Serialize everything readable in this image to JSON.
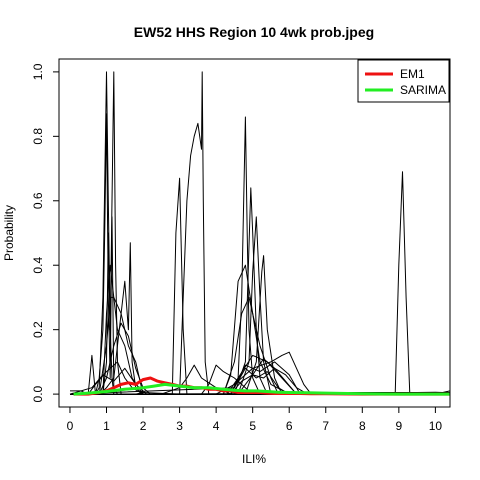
{
  "chart_data": {
    "type": "line",
    "title": "EW52 HHS Region 10 4wk prob.jpeg",
    "xlabel": "ILI%",
    "ylabel": "Probability",
    "xlim": [
      -0.3,
      10.4
    ],
    "ylim": [
      -0.04,
      1.04
    ],
    "x_ticks": [
      "0",
      "1",
      "2",
      "3",
      "4",
      "5",
      "6",
      "7",
      "8",
      "9",
      "10"
    ],
    "y_ticks": [
      "0.0",
      "0.2",
      "0.4",
      "0.6",
      "0.8",
      "1.0"
    ],
    "grid": false,
    "legend": {
      "position": "top-right",
      "entries": [
        {
          "name": "EM1",
          "color": "#ee1111"
        },
        {
          "name": "SARIMA",
          "color": "#22ee22"
        }
      ]
    },
    "series": [
      {
        "name": "EM1",
        "color": "#ee1111",
        "x": [
          0.1,
          0.5,
          0.8,
          1.0,
          1.2,
          1.4,
          1.6,
          1.8,
          2.0,
          2.2,
          2.4,
          2.6,
          2.8,
          3.0,
          3.2,
          3.4,
          3.6,
          3.8,
          4.0,
          4.2,
          4.4,
          4.6,
          4.8,
          5.0,
          5.2,
          5.4,
          5.6,
          5.8,
          6.0,
          6.3,
          6.6,
          7.0,
          8.0,
          9.0,
          10.4
        ],
        "y": [
          0.0,
          0.0,
          0.005,
          0.01,
          0.02,
          0.03,
          0.035,
          0.03,
          0.045,
          0.05,
          0.04,
          0.035,
          0.03,
          0.025,
          0.025,
          0.02,
          0.02,
          0.015,
          0.015,
          0.01,
          0.01,
          0.005,
          0.005,
          0.005,
          0.005,
          0.003,
          0.002,
          0.002,
          0.002,
          0.002,
          0.001,
          0.001,
          0.0,
          0.0,
          0.0
        ]
      },
      {
        "name": "SARIMA",
        "color": "#22ee22",
        "x": [
          0.1,
          0.5,
          1.0,
          1.5,
          2.0,
          2.3,
          2.6,
          3.0,
          3.4,
          3.8,
          4.2,
          4.5,
          4.8,
          5.1,
          5.4,
          5.7,
          6.0,
          6.5,
          7.0,
          8.0,
          9.0,
          10.4
        ],
        "y": [
          0.0,
          0.003,
          0.008,
          0.015,
          0.02,
          0.025,
          0.03,
          0.025,
          0.02,
          0.02,
          0.015,
          0.012,
          0.01,
          0.01,
          0.008,
          0.006,
          0.005,
          0.004,
          0.003,
          0.001,
          0.0,
          0.0
        ]
      },
      {
        "x": [
          0.0,
          0.3,
          0.5,
          0.6,
          0.7,
          0.8,
          0.9,
          0.95,
          1.0,
          1.05,
          1.1,
          1.15,
          1.2,
          1.3,
          1.4,
          1.6,
          2.0,
          3.0,
          4.0,
          5.0,
          6.0,
          7.0,
          8.0,
          9.0,
          10.0,
          10.4
        ],
        "y": [
          0.01,
          0.01,
          0.0,
          0.12,
          0.0,
          0.05,
          0.2,
          0.5,
          0.87,
          0.3,
          0.05,
          0.55,
          0.02,
          0.0,
          0.0,
          0.0,
          0.0,
          0.0,
          0.0,
          0.0,
          0.0,
          0.005,
          0.005,
          0.005,
          0.005,
          0.005
        ]
      },
      {
        "x": [
          0.0,
          0.7,
          0.8,
          0.9,
          1.0,
          1.05,
          1.1,
          1.15,
          1.2,
          1.3,
          1.5,
          1.7,
          1.8,
          2.0,
          3.0,
          5.0,
          7.0,
          8.0,
          9.0,
          10.4
        ],
        "y": [
          0.0,
          0.0,
          0.02,
          0.3,
          1.0,
          0.6,
          0.2,
          0.05,
          0.0,
          0.0,
          0.0,
          0.0,
          0.0,
          0.005,
          0.0,
          0.0,
          0.005,
          0.005,
          0.005,
          0.005
        ]
      },
      {
        "x": [
          0.0,
          0.9,
          1.0,
          1.05,
          1.1,
          1.15,
          1.2,
          1.25,
          1.3,
          1.4,
          2.0,
          4.0,
          6.0,
          8.0,
          10.4
        ],
        "y": [
          0.0,
          0.0,
          0.1,
          0.5,
          0.2,
          0.6,
          1.0,
          0.4,
          0.1,
          0.0,
          0.0,
          0.0,
          0.0,
          0.0,
          0.0
        ]
      },
      {
        "x": [
          0.0,
          0.8,
          1.0,
          1.2,
          1.4,
          1.5,
          1.6,
          1.65,
          1.7,
          1.8,
          2.0,
          3.0,
          5.0,
          8.0,
          10.4
        ],
        "y": [
          0.0,
          0.0,
          0.02,
          0.05,
          0.25,
          0.35,
          0.2,
          0.47,
          0.1,
          0.02,
          0.0,
          0.0,
          0.0,
          0.0,
          0.0
        ]
      },
      {
        "x": [
          0.0,
          0.8,
          1.0,
          1.1,
          1.2,
          1.4,
          1.6,
          1.8,
          2.0,
          3.0,
          6.0,
          10.4
        ],
        "y": [
          0.0,
          0.0,
          0.15,
          0.3,
          0.3,
          0.25,
          0.15,
          0.1,
          0.0,
          0.0,
          0.0,
          0.0
        ]
      },
      {
        "x": [
          0.0,
          0.9,
          1.0,
          1.1,
          1.2,
          1.3,
          1.5,
          1.7,
          2.0,
          4.0,
          7.0,
          10.4
        ],
        "y": [
          0.0,
          0.0,
          0.25,
          0.4,
          0.3,
          0.2,
          0.15,
          0.05,
          0.0,
          0.0,
          0.0,
          0.0
        ]
      },
      {
        "x": [
          0.0,
          0.8,
          1.0,
          1.2,
          1.4,
          1.6,
          1.8,
          2.0,
          2.2,
          4.0,
          8.0,
          10.4
        ],
        "y": [
          0.0,
          0.0,
          0.05,
          0.15,
          0.22,
          0.18,
          0.08,
          0.02,
          0.0,
          0.0,
          0.0,
          0.0
        ]
      },
      {
        "x": [
          0.0,
          0.5,
          0.7,
          1.0,
          1.3,
          1.5,
          1.7,
          2.0,
          3.0,
          6.0,
          10.4
        ],
        "y": [
          0.0,
          0.0,
          0.03,
          0.07,
          0.1,
          0.05,
          0.02,
          0.0,
          0.0,
          0.0,
          0.0
        ]
      },
      {
        "x": [
          0.0,
          0.6,
          0.9,
          1.2,
          1.5,
          1.8,
          2.1,
          3.0,
          6.0,
          10.4
        ],
        "y": [
          0.0,
          0.02,
          0.06,
          0.04,
          0.08,
          0.03,
          0.0,
          0.0,
          0.0,
          0.0
        ]
      },
      {
        "x": [
          0.0,
          2.5,
          2.8,
          2.9,
          3.0,
          3.1,
          3.2,
          3.4,
          4.0,
          6.0,
          10.4
        ],
        "y": [
          0.0,
          0.0,
          0.0,
          0.5,
          0.67,
          0.2,
          0.0,
          0.0,
          0.0,
          0.0,
          0.0
        ]
      },
      {
        "x": [
          0.0,
          2.8,
          3.0,
          3.1,
          3.2,
          3.3,
          3.4,
          3.5,
          3.6,
          3.62,
          3.65,
          3.7,
          3.8,
          4.0,
          6.0,
          10.4
        ],
        "y": [
          0.0,
          0.0,
          0.0,
          0.3,
          0.6,
          0.74,
          0.8,
          0.84,
          0.76,
          1.0,
          0.6,
          0.1,
          0.0,
          0.0,
          0.0,
          0.0
        ]
      },
      {
        "x": [
          0.0,
          2.5,
          3.0,
          3.2,
          3.4,
          3.6,
          4.0,
          4.4,
          5.0,
          10.4
        ],
        "y": [
          0.0,
          0.0,
          0.02,
          0.05,
          0.09,
          0.05,
          0.02,
          0.0,
          0.0,
          0.0
        ]
      },
      {
        "x": [
          0.0,
          3.6,
          3.8,
          4.0,
          4.2,
          4.5,
          4.8,
          5.0,
          10.4
        ],
        "y": [
          0.0,
          0.0,
          0.03,
          0.09,
          0.07,
          0.05,
          0.02,
          0.0,
          0.0
        ]
      },
      {
        "x": [
          0.0,
          4.4,
          4.6,
          4.7,
          4.8,
          4.85,
          4.9,
          5.0,
          5.2,
          5.4,
          6.0,
          10.4
        ],
        "y": [
          0.0,
          0.0,
          0.05,
          0.3,
          0.86,
          0.5,
          0.2,
          0.05,
          0.0,
          0.0,
          0.0,
          0.0
        ]
      },
      {
        "x": [
          0.0,
          4.5,
          4.8,
          4.95,
          5.0,
          5.1,
          5.2,
          5.4,
          6.0,
          10.4
        ],
        "y": [
          0.0,
          0.0,
          0.1,
          0.64,
          0.5,
          0.2,
          0.05,
          0.0,
          0.0,
          0.0
        ]
      },
      {
        "x": [
          0.0,
          4.6,
          4.9,
          5.0,
          5.1,
          5.2,
          5.3,
          5.5,
          6.0,
          10.4
        ],
        "y": [
          0.0,
          0.0,
          0.1,
          0.38,
          0.55,
          0.3,
          0.1,
          0.0,
          0.0,
          0.0
        ]
      },
      {
        "x": [
          0.0,
          4.8,
          5.1,
          5.25,
          5.3,
          5.4,
          5.6,
          5.8,
          6.2,
          10.4
        ],
        "y": [
          0.0,
          0.0,
          0.1,
          0.38,
          0.43,
          0.2,
          0.05,
          0.0,
          0.0,
          0.0
        ]
      },
      {
        "x": [
          0.0,
          4.2,
          4.4,
          4.6,
          4.8,
          5.0,
          5.2,
          5.5,
          6.0,
          10.4
        ],
        "y": [
          0.0,
          0.0,
          0.06,
          0.35,
          0.4,
          0.25,
          0.1,
          0.03,
          0.0,
          0.0
        ]
      },
      {
        "x": [
          0.0,
          4.2,
          4.5,
          4.7,
          4.9,
          5.2,
          5.5,
          5.7,
          6.0,
          10.4
        ],
        "y": [
          0.0,
          0.0,
          0.1,
          0.25,
          0.3,
          0.15,
          0.05,
          0.0,
          0.0,
          0.0
        ]
      },
      {
        "x": [
          0.0,
          4.0,
          4.5,
          5.0,
          5.5,
          5.8,
          6.0,
          6.2,
          6.4,
          6.6,
          10.4
        ],
        "y": [
          0.0,
          0.0,
          0.03,
          0.08,
          0.1,
          0.12,
          0.13,
          0.08,
          0.03,
          0.0,
          0.0
        ]
      },
      {
        "x": [
          0.0,
          4.3,
          4.6,
          5.0,
          5.4,
          5.8,
          6.2,
          10.4
        ],
        "y": [
          0.0,
          0.0,
          0.05,
          0.12,
          0.1,
          0.05,
          0.0,
          0.0
        ]
      },
      {
        "x": [
          0.0,
          4.4,
          4.8,
          5.2,
          5.6,
          6.0,
          6.3,
          10.4
        ],
        "y": [
          0.0,
          0.0,
          0.09,
          0.07,
          0.1,
          0.06,
          0.0,
          0.0
        ]
      },
      {
        "x": [
          0.0,
          4.5,
          4.8,
          5.1,
          5.4,
          5.7,
          6.0,
          10.4
        ],
        "y": [
          0.0,
          0.02,
          0.08,
          0.05,
          0.07,
          0.02,
          0.0,
          0.0
        ]
      },
      {
        "x": [
          0.0,
          4.6,
          5.0,
          5.3,
          5.6,
          5.9,
          6.2,
          10.4
        ],
        "y": [
          0.0,
          0.0,
          0.06,
          0.11,
          0.08,
          0.04,
          0.0,
          0.0
        ]
      },
      {
        "x": [
          0.0,
          4.4,
          4.7,
          5.0,
          5.3,
          5.6,
          5.9,
          6.2,
          6.5,
          10.4
        ],
        "y": [
          0.0,
          0.0,
          0.04,
          0.06,
          0.05,
          0.08,
          0.06,
          0.02,
          0.0,
          0.0
        ]
      },
      {
        "x": [
          0.0,
          8.5,
          8.9,
          9.0,
          9.1,
          9.2,
          9.3,
          9.5,
          10.4
        ],
        "y": [
          0.0,
          0.0,
          0.0,
          0.4,
          0.69,
          0.3,
          0.0,
          0.0,
          0.0
        ]
      },
      {
        "x": [
          0.0,
          6.0,
          7.0,
          8.0,
          9.0,
          10.0,
          10.2,
          10.4
        ],
        "y": [
          0.0,
          0.002,
          0.005,
          0.003,
          0.004,
          0.006,
          0.005,
          0.01
        ]
      }
    ]
  }
}
